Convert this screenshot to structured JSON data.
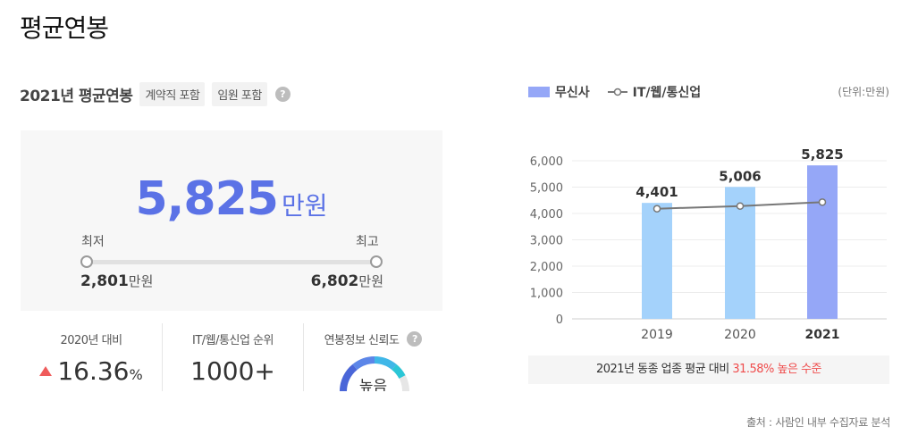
{
  "page": {
    "title": "평균연봉"
  },
  "salary": {
    "section_title": "2021년 평균연봉",
    "tags": [
      "계약직 포함",
      "임원 포함"
    ],
    "help_icon": "question-icon",
    "average": "5,825",
    "unit": "만원",
    "min_label": "최저",
    "max_label": "최고",
    "min_value": "2,801",
    "max_value": "6,802",
    "value_unit": "만원"
  },
  "stats": {
    "yoy_label": "2020년 대비",
    "yoy_value": "16.36",
    "yoy_unit": "%",
    "yoy_color": "#ef5b5b",
    "rank_label": "IT/웹/통신업 순위",
    "rank_value": "1000+",
    "reliability_label": "연봉정보 신뢰도",
    "reliability_value": "높음"
  },
  "legend": {
    "company": "무신사",
    "industry": "IT/웹/통신업",
    "unit_note": "(단위:만원)"
  },
  "chart_data": {
    "type": "bar",
    "categories": [
      "2019",
      "2020",
      "2021"
    ],
    "series": [
      {
        "name": "무신사",
        "values": [
          4401,
          5006,
          5825
        ],
        "value_labels": [
          "4,401",
          "5,006",
          "5,825"
        ]
      },
      {
        "name": "IT/웹/통신업",
        "type": "line",
        "values": [
          4180,
          4280,
          4430
        ]
      }
    ],
    "ylim": [
      0,
      6000
    ],
    "y_ticks": [
      "0",
      "1,000",
      "2,000",
      "3,000",
      "4,000",
      "5,000",
      "6,000"
    ],
    "bar_colors": [
      "#a4d2fb",
      "#a4d2fb",
      "#95a7f7"
    ],
    "line_color": "#777777",
    "grid": true
  },
  "summary": {
    "prefix": "2021년 동종 업종 평균 대비 ",
    "highlight": "31.58% 높은 수준"
  },
  "source": "출처 : 사람인 내부 수집자료 분석"
}
